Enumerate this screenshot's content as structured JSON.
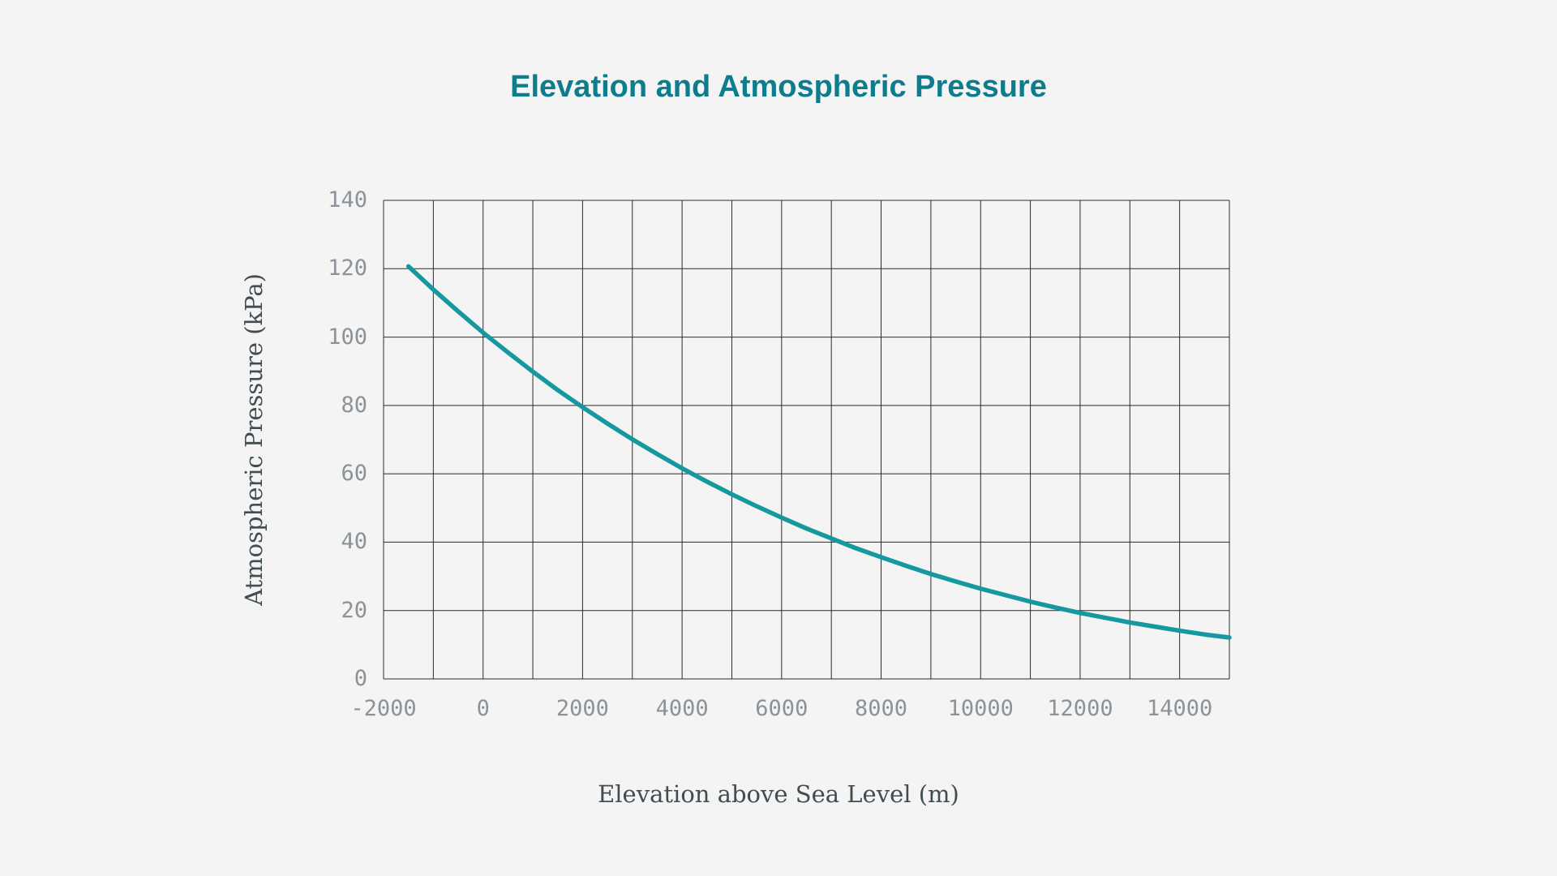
{
  "chart_data": {
    "type": "line",
    "title": "Elevation and Atmospheric Pressure",
    "xlabel": "Elevation above Sea Level (m)",
    "ylabel": "Atmospheric Pressure (kPa)",
    "x": [
      -1500,
      -1000,
      -500,
      0,
      500,
      1000,
      1500,
      2000,
      2500,
      3000,
      3500,
      4000,
      4500,
      5000,
      5500,
      6000,
      6500,
      7000,
      7500,
      8000,
      8500,
      9000,
      9500,
      10000,
      10500,
      11000,
      11500,
      12000,
      12500,
      13000,
      13500,
      14000,
      14500,
      15000
    ],
    "y": [
      120.7,
      113.9,
      107.5,
      101.3,
      95.5,
      89.9,
      84.5,
      79.5,
      74.7,
      70.1,
      65.8,
      61.6,
      57.7,
      54.0,
      50.5,
      47.2,
      44.0,
      41.1,
      38.2,
      35.6,
      33.1,
      30.7,
      28.5,
      26.4,
      24.5,
      22.6,
      20.9,
      19.3,
      17.9,
      16.5,
      15.3,
      14.1,
      13.0,
      12.1
    ],
    "xlim": [
      -2000,
      15000
    ],
    "ylim": [
      0,
      140
    ],
    "x_ticks": [
      -2000,
      0,
      2000,
      4000,
      6000,
      8000,
      10000,
      12000,
      14000
    ],
    "y_ticks": [
      0,
      20,
      40,
      60,
      80,
      100,
      120,
      140
    ],
    "x_grid_step": 1000,
    "y_grid_step": 20,
    "grid": true,
    "legend_position": "none",
    "colors": {
      "line": "#16989f",
      "title": "#0d7c8c",
      "tick_label": "#8b9398",
      "axis_label": "#414d52",
      "grid": "#2b2b2b",
      "background": "#f4f4f4"
    }
  }
}
